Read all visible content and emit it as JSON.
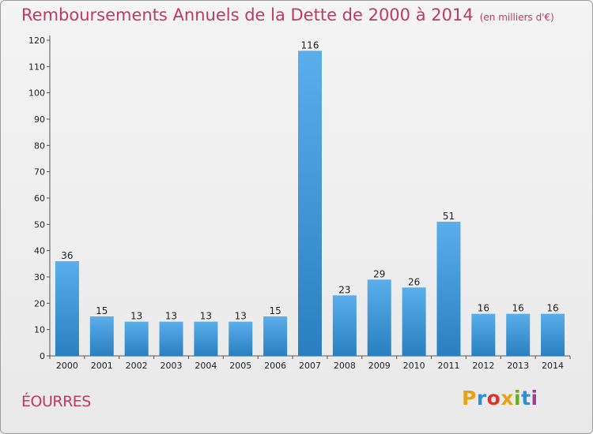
{
  "title": "Remboursements Annuels de la Dette de 2000 à 2014",
  "title_unit": "(en milliers d'€)",
  "place_name": "ÉOURRES",
  "logo": {
    "text": "Proxiti",
    "colors": [
      "#e8a21a",
      "#2b8fd6",
      "#d9362d",
      "#e8a21a",
      "#6aab2c",
      "#2b8fd6",
      "#9b3d96"
    ]
  },
  "colors": {
    "bar_light": "#5aaeea",
    "bar_dark": "#2a7fc0",
    "title": "#c0395e"
  },
  "chart_data": {
    "type": "bar",
    "title": "Remboursements Annuels de la Dette de 2000 à 2014",
    "categories": [
      "2000",
      "2001",
      "2002",
      "2003",
      "2004",
      "2005",
      "2006",
      "2007",
      "2008",
      "2009",
      "2010",
      "2011",
      "2012",
      "2013",
      "2014"
    ],
    "values": [
      36,
      15,
      13,
      13,
      13,
      13,
      15,
      116,
      23,
      29,
      26,
      51,
      16,
      16,
      16
    ],
    "ylim": [
      0,
      120
    ],
    "yticks": [
      0,
      10,
      20,
      30,
      40,
      50,
      60,
      70,
      80,
      90,
      100,
      110,
      120
    ],
    "grid": false,
    "data_labels": true
  }
}
